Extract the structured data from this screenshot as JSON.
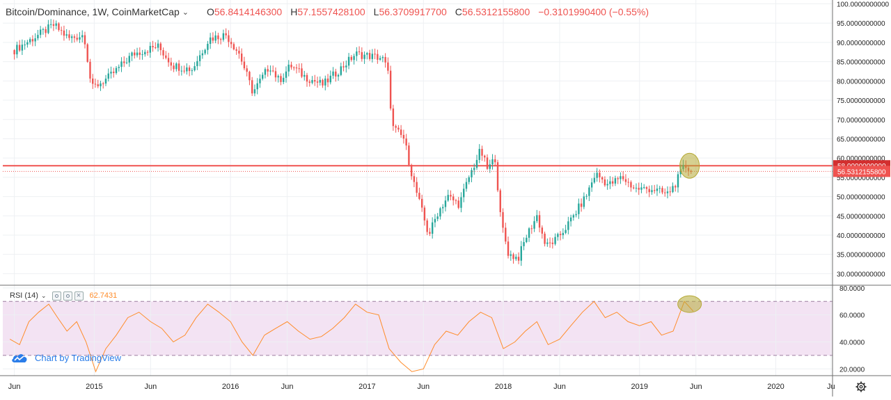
{
  "legend": {
    "symbol": "Bitcoin/Dominance, 1W, CoinMarketCap",
    "o_key": "O",
    "o": "56.8414146300",
    "h_key": "H",
    "h": "57.1557428100",
    "l_key": "L",
    "l": "56.3709917700",
    "c_key": "C",
    "c": "56.5312155800",
    "change": "−0.3101990400 (−0.55%)"
  },
  "rsi_legend": {
    "name": "RSI (14)",
    "value": "62.7431"
  },
  "brand": {
    "label": "Chart by TradingView"
  },
  "colors": {
    "up": "#26a69a",
    "down": "#ef5350",
    "rsi_line": "#ff8c2a",
    "rsi_band": "#f3e3f3",
    "highlight": "#b5a934"
  },
  "chart_data": [
    {
      "type": "candlestick",
      "series_name": "Bitcoin/Dominance",
      "interval": "1W",
      "ylim": [
        27,
        101
      ],
      "y_ticks": [
        "100.0000000000",
        "95.0000000000",
        "90.0000000000",
        "85.0000000000",
        "80.0000000000",
        "75.0000000000",
        "70.0000000000",
        "65.0000000000",
        "60.0000000000",
        "55.0000000000",
        "50.0000000000",
        "45.0000000000",
        "40.0000000000",
        "35.0000000000",
        "30.0000000000"
      ],
      "x_ticks": [
        "Jun",
        "2015",
        "Jun",
        "2016",
        "Jun",
        "2017",
        "Jun",
        "2018",
        "Jun",
        "2019",
        "Jun",
        "2020",
        "Ju"
      ],
      "horizontal_line": {
        "value": 58.0,
        "label": "58.0000000000"
      },
      "last_price": {
        "value": 56.53121558,
        "label": "56.5312155800"
      },
      "path": [
        [
          "2014-06-01",
          88
        ],
        [
          "2014-07-20",
          91
        ],
        [
          "2014-09-15",
          94.5
        ],
        [
          "2014-10-25",
          91
        ],
        [
          "2014-12-05",
          92
        ],
        [
          "2014-12-25",
          78
        ],
        [
          "2015-02-10",
          81
        ],
        [
          "2015-04-15",
          87
        ],
        [
          "2015-06-20",
          89
        ],
        [
          "2015-08-01",
          84
        ],
        [
          "2015-09-20",
          83
        ],
        [
          "2015-11-05",
          91
        ],
        [
          "2015-12-20",
          92
        ],
        [
          "2016-01-25",
          87
        ],
        [
          "2016-03-01",
          77
        ],
        [
          "2016-04-15",
          84
        ],
        [
          "2016-05-10",
          80
        ],
        [
          "2016-06-10",
          84
        ],
        [
          "2016-07-20",
          81
        ],
        [
          "2016-09-05",
          79
        ],
        [
          "2016-10-20",
          83
        ],
        [
          "2016-12-01",
          87
        ],
        [
          "2017-02-10",
          86
        ],
        [
          "2017-02-25",
          83
        ],
        [
          "2017-03-10",
          68
        ],
        [
          "2017-04-10",
          65
        ],
        [
          "2017-05-05",
          54
        ],
        [
          "2017-06-15",
          40
        ],
        [
          "2017-07-10",
          46
        ],
        [
          "2017-08-05",
          50
        ],
        [
          "2017-09-05",
          48
        ],
        [
          "2017-10-01",
          55
        ],
        [
          "2017-11-01",
          62
        ],
        [
          "2017-11-20",
          57
        ],
        [
          "2017-12-10",
          60
        ],
        [
          "2017-12-25",
          44
        ],
        [
          "2018-01-15",
          35
        ],
        [
          "2018-02-10",
          34
        ],
        [
          "2018-03-05",
          40
        ],
        [
          "2018-04-01",
          45
        ],
        [
          "2018-04-25",
          37
        ],
        [
          "2018-05-25",
          39
        ],
        [
          "2018-06-25",
          43
        ],
        [
          "2018-08-10",
          50
        ],
        [
          "2018-09-05",
          56
        ],
        [
          "2018-10-10",
          53
        ],
        [
          "2018-11-15",
          55
        ],
        [
          "2018-12-20",
          52
        ],
        [
          "2019-02-05",
          52
        ],
        [
          "2019-03-15",
          50.5
        ],
        [
          "2019-04-05",
          53
        ],
        [
          "2019-05-01",
          58
        ],
        [
          "2019-05-25",
          56.53
        ]
      ],
      "highlight_point": [
        "2019-05-15",
        58
      ]
    },
    {
      "type": "line",
      "series_name": "RSI (14)",
      "ylim": [
        15,
        82
      ],
      "y_ticks": [
        "80.0000",
        "60.0000",
        "40.0000",
        "20.0000"
      ],
      "upper_band": 70,
      "lower_band": 30,
      "last_value": 62.7431,
      "path": [
        [
          "2014-05-20",
          42
        ],
        [
          "2014-06-15",
          38
        ],
        [
          "2014-07-10",
          55
        ],
        [
          "2014-08-05",
          62
        ],
        [
          "2014-09-01",
          68
        ],
        [
          "2014-09-25",
          58
        ],
        [
          "2014-10-20",
          48
        ],
        [
          "2014-11-15",
          55
        ],
        [
          "2014-12-10",
          40
        ],
        [
          "2015-01-05",
          18
        ],
        [
          "2015-02-01",
          35
        ],
        [
          "2015-03-01",
          45
        ],
        [
          "2015-04-01",
          58
        ],
        [
          "2015-05-01",
          62
        ],
        [
          "2015-06-01",
          55
        ],
        [
          "2015-07-01",
          50
        ],
        [
          "2015-08-01",
          40
        ],
        [
          "2015-09-01",
          45
        ],
        [
          "2015-10-01",
          58
        ],
        [
          "2015-11-01",
          68
        ],
        [
          "2015-12-01",
          62
        ],
        [
          "2016-01-01",
          55
        ],
        [
          "2016-02-01",
          40
        ],
        [
          "2016-03-01",
          30
        ],
        [
          "2016-04-01",
          45
        ],
        [
          "2016-05-01",
          50
        ],
        [
          "2016-06-01",
          55
        ],
        [
          "2016-07-01",
          48
        ],
        [
          "2016-08-01",
          42
        ],
        [
          "2016-09-01",
          44
        ],
        [
          "2016-10-01",
          50
        ],
        [
          "2016-11-01",
          58
        ],
        [
          "2016-12-01",
          68
        ],
        [
          "2017-01-01",
          62
        ],
        [
          "2017-02-01",
          60
        ],
        [
          "2017-03-01",
          35
        ],
        [
          "2017-04-01",
          25
        ],
        [
          "2017-05-01",
          18
        ],
        [
          "2017-06-01",
          20
        ],
        [
          "2017-07-01",
          38
        ],
        [
          "2017-08-01",
          48
        ],
        [
          "2017-09-01",
          45
        ],
        [
          "2017-10-01",
          55
        ],
        [
          "2017-11-01",
          62
        ],
        [
          "2017-12-01",
          58
        ],
        [
          "2018-01-01",
          35
        ],
        [
          "2018-02-01",
          40
        ],
        [
          "2018-03-01",
          48
        ],
        [
          "2018-04-01",
          55
        ],
        [
          "2018-05-01",
          38
        ],
        [
          "2018-06-01",
          42
        ],
        [
          "2018-07-01",
          52
        ],
        [
          "2018-08-01",
          62
        ],
        [
          "2018-09-01",
          70
        ],
        [
          "2018-10-01",
          58
        ],
        [
          "2018-11-01",
          62
        ],
        [
          "2018-12-01",
          55
        ],
        [
          "2019-01-01",
          52
        ],
        [
          "2019-02-01",
          55
        ],
        [
          "2019-03-01",
          45
        ],
        [
          "2019-04-01",
          48
        ],
        [
          "2019-05-01",
          70
        ],
        [
          "2019-05-25",
          62.74
        ]
      ],
      "highlight_point": [
        "2019-05-15",
        68
      ]
    }
  ]
}
